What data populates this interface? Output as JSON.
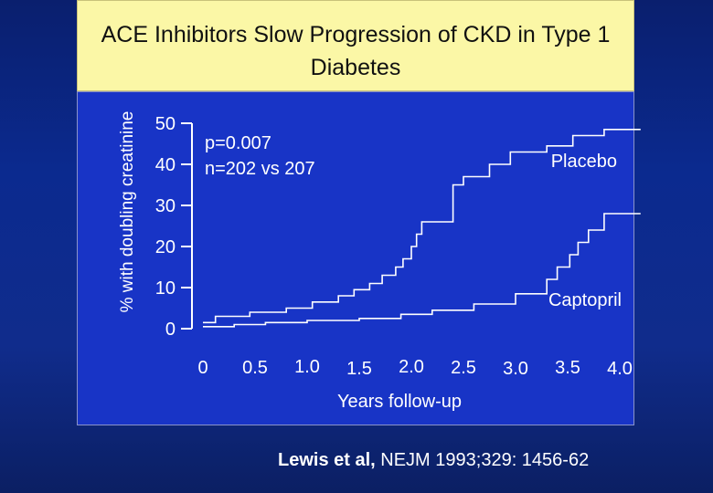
{
  "slide": {
    "title": "ACE Inhibitors Slow Progression of CKD in Type 1 Diabetes",
    "citation_authors": "Lewis et al,",
    "citation_rest": " NEJM 1993;329: 1456-62"
  },
  "colors": {
    "background": "#0b2a8f",
    "title_box": "#fbf7a6",
    "plot_area": "#1834c6",
    "lines": "#ffffff"
  },
  "chart_data": {
    "type": "line",
    "title": "ACE Inhibitors Slow Progression of CKD in Type 1 Diabetes",
    "xlabel": "Years follow-up",
    "ylabel": "% with doubling creatinine",
    "x_ticks": [
      {
        "value": 0,
        "label": "0"
      },
      {
        "value": 0.5,
        "label": "0.5"
      },
      {
        "value": 1.0,
        "label": "1.0"
      },
      {
        "value": 1.5,
        "label": "1.5"
      },
      {
        "value": 2.0,
        "label": "2.0"
      },
      {
        "value": 2.5,
        "label": "2.5"
      },
      {
        "value": 3.0,
        "label": "3.0"
      },
      {
        "value": 3.5,
        "label": "3.5"
      },
      {
        "value": 4.0,
        "label": "4.0"
      }
    ],
    "y_ticks": [
      {
        "value": 0,
        "label": "0"
      },
      {
        "value": 10,
        "label": "10"
      },
      {
        "value": 20,
        "label": "20"
      },
      {
        "value": 30,
        "label": "30"
      },
      {
        "value": 40,
        "label": "40"
      },
      {
        "value": 50,
        "label": "50"
      }
    ],
    "xlim": [
      0,
      4.0
    ],
    "ylim": [
      0,
      50
    ],
    "grid": false,
    "annotations": {
      "p_value": "p=0.007",
      "n": "n=202 vs 207"
    },
    "series": [
      {
        "name": "Placebo",
        "points": [
          [
            0,
            1.5
          ],
          [
            0.12,
            1.5
          ],
          [
            0.12,
            3
          ],
          [
            0.45,
            3
          ],
          [
            0.45,
            4
          ],
          [
            0.8,
            4
          ],
          [
            0.8,
            5
          ],
          [
            1.05,
            5
          ],
          [
            1.05,
            6.5
          ],
          [
            1.3,
            6.5
          ],
          [
            1.3,
            8
          ],
          [
            1.45,
            8
          ],
          [
            1.45,
            9.5
          ],
          [
            1.6,
            9.5
          ],
          [
            1.6,
            11
          ],
          [
            1.72,
            11
          ],
          [
            1.72,
            13
          ],
          [
            1.85,
            13
          ],
          [
            1.85,
            15
          ],
          [
            1.92,
            15
          ],
          [
            1.92,
            17
          ],
          [
            2.0,
            17
          ],
          [
            2.0,
            20
          ],
          [
            2.05,
            20
          ],
          [
            2.05,
            23
          ],
          [
            2.1,
            23
          ],
          [
            2.1,
            26
          ],
          [
            2.4,
            26
          ],
          [
            2.4,
            35
          ],
          [
            2.5,
            35
          ],
          [
            2.5,
            37
          ],
          [
            2.75,
            37
          ],
          [
            2.75,
            40
          ],
          [
            2.95,
            40
          ],
          [
            2.95,
            43
          ],
          [
            3.3,
            43
          ],
          [
            3.3,
            44.5
          ],
          [
            3.55,
            44.5
          ],
          [
            3.55,
            47
          ],
          [
            3.85,
            47
          ],
          [
            3.85,
            48.5
          ],
          [
            4.2,
            48.5
          ]
        ]
      },
      {
        "name": "Captopril",
        "points": [
          [
            0,
            0.5
          ],
          [
            0.3,
            0.5
          ],
          [
            0.3,
            1
          ],
          [
            0.6,
            1
          ],
          [
            0.6,
            1.5
          ],
          [
            1.0,
            1.5
          ],
          [
            1.0,
            2
          ],
          [
            1.5,
            2
          ],
          [
            1.5,
            2.5
          ],
          [
            1.9,
            2.5
          ],
          [
            1.9,
            3.5
          ],
          [
            2.2,
            3.5
          ],
          [
            2.2,
            4.5
          ],
          [
            2.6,
            4.5
          ],
          [
            2.6,
            6
          ],
          [
            3.0,
            6
          ],
          [
            3.0,
            8.5
          ],
          [
            3.3,
            8.5
          ],
          [
            3.3,
            12
          ],
          [
            3.4,
            12
          ],
          [
            3.4,
            15
          ],
          [
            3.52,
            15
          ],
          [
            3.52,
            18
          ],
          [
            3.6,
            18
          ],
          [
            3.6,
            21
          ],
          [
            3.7,
            21
          ],
          [
            3.7,
            24
          ],
          [
            3.85,
            24
          ],
          [
            3.85,
            28
          ],
          [
            4.2,
            28
          ]
        ]
      }
    ]
  }
}
